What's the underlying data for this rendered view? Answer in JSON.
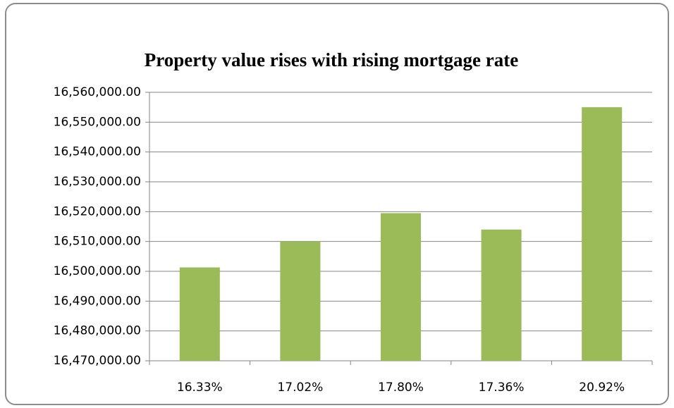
{
  "chart_data": {
    "type": "bar",
    "title": "Property value rises with rising mortgage rate",
    "categories": [
      "16.33%",
      "17.02%",
      "17.80%",
      "17.36%",
      "20.92%"
    ],
    "values": [
      16501300,
      16510000,
      16519500,
      16514000,
      16555000
    ],
    "color": "#9bbb59",
    "ylim": [
      16470000,
      16560000
    ],
    "yticks": [
      {
        "value": 16470000,
        "label": "16,470,000.00"
      },
      {
        "value": 16480000,
        "label": "16,480,000.00"
      },
      {
        "value": 16490000,
        "label": "16,490,000.00"
      },
      {
        "value": 16500000,
        "label": "16,500,000.00"
      },
      {
        "value": 16510000,
        "label": "16,510,000.00"
      },
      {
        "value": 16520000,
        "label": "16,520,000.00"
      },
      {
        "value": 16530000,
        "label": "16,530,000.00"
      },
      {
        "value": 16540000,
        "label": "16,540,000.00"
      },
      {
        "value": 16550000,
        "label": "16,550,000.00"
      },
      {
        "value": 16560000,
        "label": "16,560,000.00"
      }
    ],
    "grid": true
  }
}
